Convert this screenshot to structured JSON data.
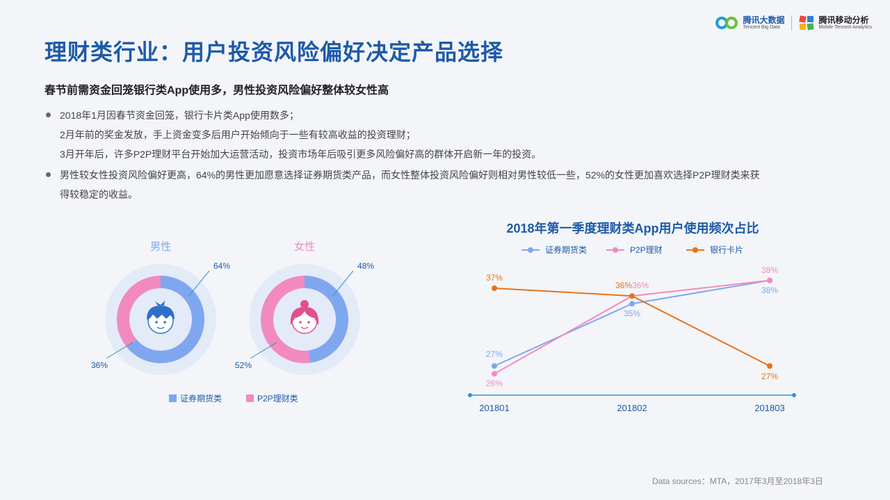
{
  "header": {
    "title": "理财类行业：用户投资风险偏好决定产品选择",
    "subtitle": "春节前需资金回笼银行类App使用多，男性投资风险偏好整体较女性高"
  },
  "logos": [
    {
      "cn": "腾讯大数据",
      "en": "Tencent Big Data"
    },
    {
      "cn": "腾讯移动分析",
      "en": "Mobile Tencent Analytics"
    }
  ],
  "bullets": [
    {
      "lines": [
        "2018年1月因春节资金回笼，银行卡片类App使用数多；",
        "2月年前的奖金发放，手上资金变多后用户开始倾向于一些有较高收益的投资理财；",
        "3月开年后，许多P2P理财平台开始加大运营活动，投资市场年后吸引更多风险偏好高的群体开启新一年的投资。"
      ]
    },
    {
      "lines": [
        "男性较女性投资风险偏好更高，64%的男性更加愿意选择证券期货类产品，而女性整体投资风险偏好则相对男性较低一些，52%的女性更加喜欢选择P2P理财类来获",
        "得较稳定的收益。"
      ]
    }
  ],
  "colors": {
    "blue": "#7fa7ef",
    "pink": "#f28ac0",
    "orange": "#e8731a",
    "donut_bg": "#e3ebf8",
    "axis": "#3a8fd0",
    "title": "#1e5aa8"
  },
  "source": "Data sources：MTA，2017年3月至2018年3日",
  "chart_data": [
    {
      "type": "pie",
      "title": "男性",
      "icon": "boy-face-icon",
      "slices": [
        {
          "name": "证券期货类",
          "value": 64,
          "label": "64%"
        },
        {
          "name": "P2P理财类",
          "value": 36,
          "label": "36%"
        }
      ]
    },
    {
      "type": "pie",
      "title": "女性",
      "icon": "girl-face-icon",
      "slices": [
        {
          "name": "证券期货类",
          "value": 48,
          "label": "48%"
        },
        {
          "name": "P2P理财类",
          "value": 52,
          "label": "52%"
        }
      ]
    },
    {
      "type": "line",
      "title": "2018年第一季度理财类App用户使用频次占比",
      "categories": [
        "201801",
        "201802",
        "201803"
      ],
      "legend_position": "top",
      "grid": false,
      "series": [
        {
          "name": "证券期货类",
          "values": [
            27,
            35,
            38
          ],
          "labels": [
            "27%",
            "35%",
            "38%"
          ]
        },
        {
          "name": "P2P理财",
          "values": [
            26,
            36,
            38
          ],
          "labels": [
            "26%",
            "36%",
            "38%"
          ]
        },
        {
          "name": "银行卡片",
          "values": [
            37,
            36,
            27
          ],
          "labels": [
            "37%",
            "36%",
            "27%"
          ]
        }
      ]
    }
  ],
  "pie_legend": [
    "证券期货类",
    "P2P理财类"
  ]
}
